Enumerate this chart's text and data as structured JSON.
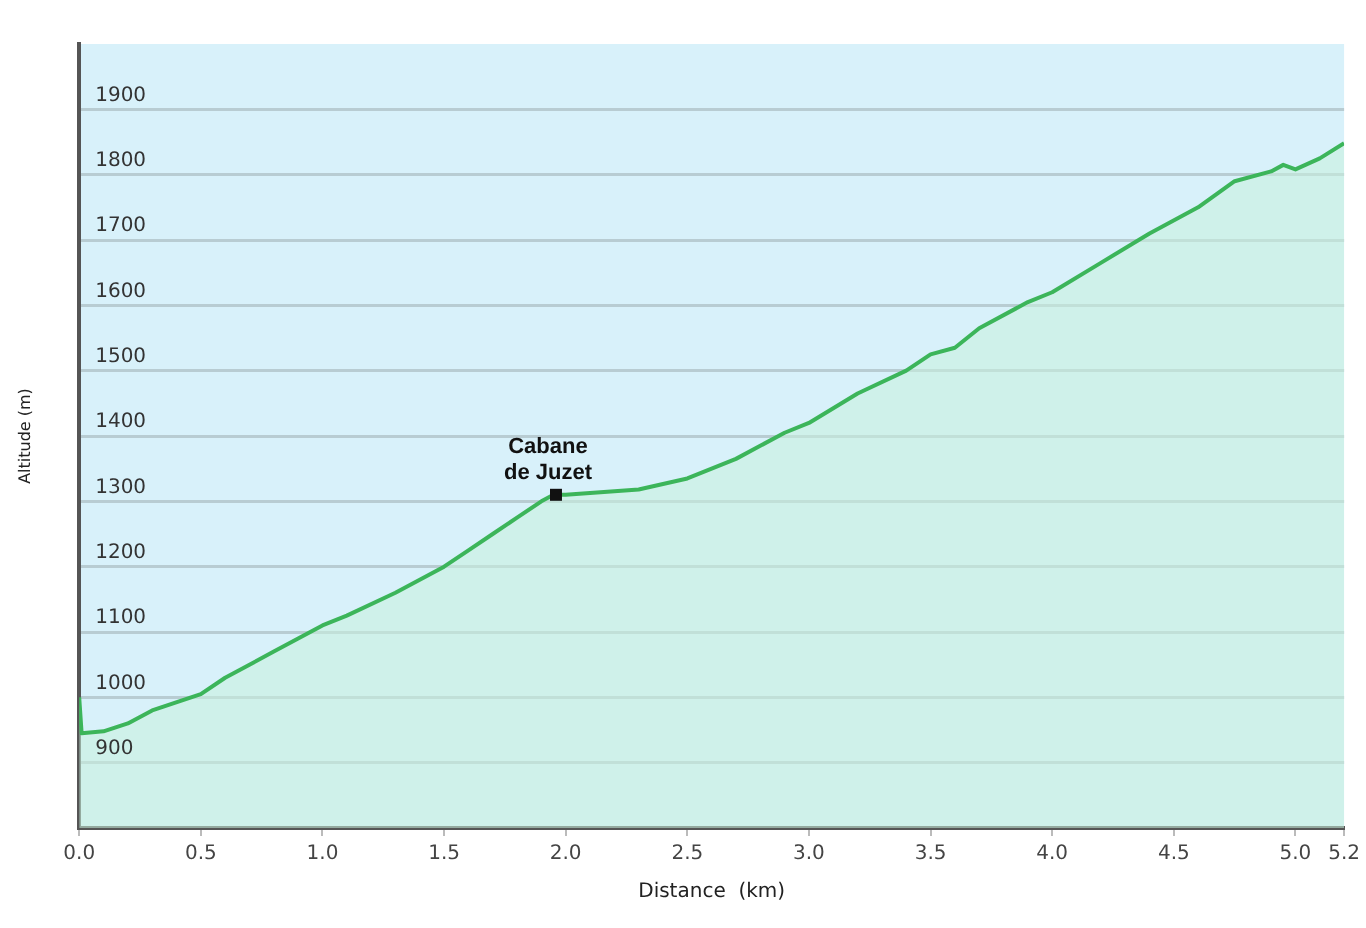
{
  "chart_data": {
    "type": "area",
    "xlabel": "Distance  (km)",
    "ylabel": "Altitude (m)",
    "xlim": [
      0,
      5.2
    ],
    "xticks": [
      {
        "value": 0,
        "label": "0.0"
      },
      {
        "value": 0.5,
        "label": "0.5"
      },
      {
        "value": 1,
        "label": "1.0"
      },
      {
        "value": 1.5,
        "label": "1.5"
      },
      {
        "value": 2,
        "label": "2.0"
      },
      {
        "value": 2.5,
        "label": "2.5"
      },
      {
        "value": 3,
        "label": "3.0"
      },
      {
        "value": 3.5,
        "label": "3.5"
      },
      {
        "value": 4,
        "label": "4.0"
      },
      {
        "value": 4.5,
        "label": "4.5"
      },
      {
        "value": 5,
        "label": "5.0"
      },
      {
        "value": 5.2,
        "label": "5.2"
      }
    ],
    "ylim": [
      800,
      2000
    ],
    "yticks": [
      900,
      1000,
      1100,
      1200,
      1300,
      1400,
      1500,
      1600,
      1700,
      1800,
      1900
    ],
    "grid": "y",
    "marker": "none",
    "legend": false,
    "series": [
      {
        "color": "#3cb55a",
        "x": [
          0,
          0.01,
          0.1,
          0.2,
          0.3,
          0.5,
          0.6,
          0.8,
          0.9,
          1.0,
          1.1,
          1.3,
          1.5,
          1.6,
          1.7,
          1.8,
          1.9,
          1.95,
          2.0,
          2.3,
          2.5,
          2.7,
          2.9,
          3.0,
          3.2,
          3.4,
          3.5,
          3.6,
          3.7,
          3.9,
          4.0,
          4.2,
          4.4,
          4.6,
          4.75,
          4.9,
          4.95,
          5.0,
          5.1,
          5.2
        ],
        "values": [
          1000,
          945,
          948,
          960,
          980,
          1005,
          1030,
          1070,
          1090,
          1110,
          1125,
          1160,
          1200,
          1225,
          1250,
          1275,
          1300,
          1310,
          1310,
          1318,
          1335,
          1365,
          1405,
          1420,
          1465,
          1500,
          1525,
          1535,
          1565,
          1605,
          1620,
          1665,
          1710,
          1750,
          1790,
          1805,
          1815,
          1808,
          1825,
          1848
        ]
      }
    ],
    "annotations": [
      {
        "text": "Cabane\nde Juzet",
        "x": 1.96,
        "y": 1310
      }
    ]
  }
}
